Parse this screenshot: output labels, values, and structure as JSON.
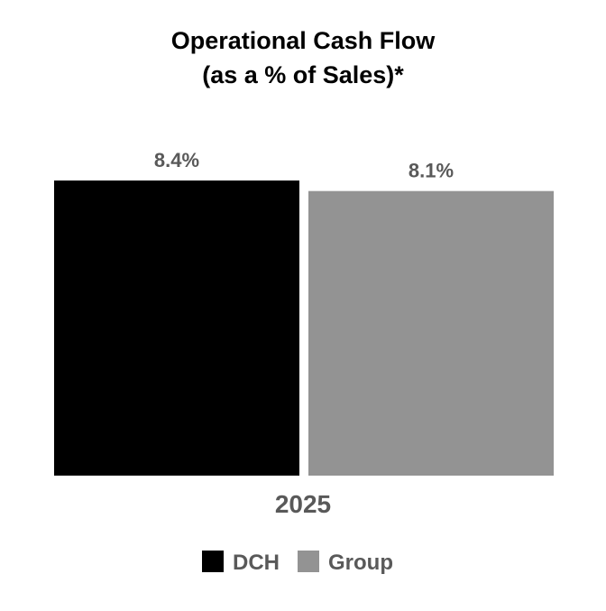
{
  "chart_data": {
    "type": "bar",
    "title_lines": [
      "Operational Cash Flow",
      "(as a % of Sales)*"
    ],
    "categories": [
      "2025"
    ],
    "series": [
      {
        "name": "DCH",
        "values": [
          8.4
        ],
        "color": "#000000",
        "label": "8.4%"
      },
      {
        "name": "Group",
        "values": [
          8.1
        ],
        "color": "#939393",
        "label": "8.1%"
      }
    ],
    "ylim": [
      0,
      8.4
    ],
    "grid": false,
    "legend_placement": "bottom-center",
    "label_color": "#595959"
  }
}
